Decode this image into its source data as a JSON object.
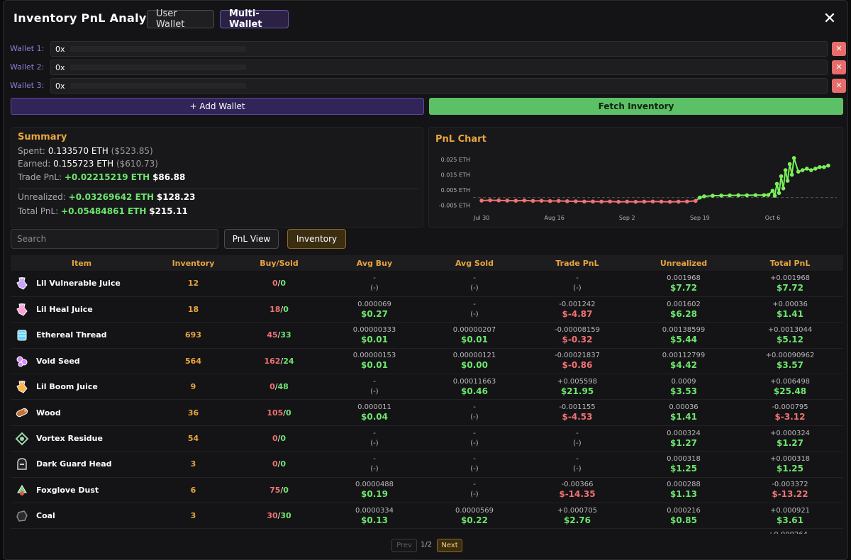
{
  "header": {
    "title": "Inventory PnL Analysis",
    "mode_user": "User Wallet",
    "mode_multi": "Multi-Wallet",
    "close": "✕"
  },
  "wallets": [
    {
      "label": "Wallet 1:",
      "value": "0x"
    },
    {
      "label": "Wallet 2:",
      "value": "0x"
    },
    {
      "label": "Wallet 3:",
      "value": "0x"
    }
  ],
  "remove_label": "✕",
  "add_wallet_label": "+ Add Wallet",
  "fetch_label": "Fetch Inventory",
  "summary": {
    "title": "Summary",
    "spent_label": "Spent:",
    "spent_eth": "0.133570 ETH",
    "spent_usd": "($523.85)",
    "earned_label": "Earned:",
    "earned_eth": "0.155723 ETH",
    "earned_usd": "($610.73)",
    "trade_label": "Trade PnL:",
    "trade_eth": "+0.02215219 ETH",
    "trade_usd": "$86.88",
    "unrealized_label": "Unrealized:",
    "unrealized_eth": "+0.03269642 ETH",
    "unrealized_usd": "$128.23",
    "total_label": "Total PnL:",
    "total_eth": "+0.05484861 ETH",
    "total_usd": "$215.11"
  },
  "chart_data": {
    "type": "line",
    "title": "PnL Chart",
    "y_ticks": [
      "0.025 ETH",
      "0.015 ETH",
      "0.005 ETH",
      "-0.005 ETH"
    ],
    "y_tick_values": [
      0.025,
      0.015,
      0.005,
      -0.005
    ],
    "ylim": [
      -0.009,
      0.032
    ],
    "x_ticks": [
      "Jul 30",
      "Aug 16",
      "Sep 2",
      "Sep 19",
      "Oct 6"
    ],
    "x_tick_values": [
      0,
      17,
      34,
      51,
      68
    ],
    "xlim": [
      -2,
      83
    ],
    "grid": false,
    "reference_line": 0,
    "negative_color": "#f07272",
    "positive_color": "#7cf05a",
    "series": [
      {
        "x": [
          0,
          2,
          4,
          6,
          8,
          10,
          12,
          14,
          16,
          18,
          20,
          22,
          24,
          26,
          28,
          30,
          32,
          34,
          36,
          38,
          40,
          42,
          44,
          46,
          48,
          50,
          51,
          52,
          54,
          56,
          58,
          60,
          62,
          64,
          66,
          67,
          68,
          68.5,
          69,
          69.5,
          70,
          70.5,
          71,
          71.5,
          72,
          72.5,
          73,
          74,
          75,
          76,
          77,
          78,
          79,
          80,
          81
        ],
        "y": [
          -0.002,
          -0.0018,
          -0.0019,
          -0.002,
          -0.0021,
          -0.0019,
          -0.0022,
          -0.0021,
          -0.0023,
          -0.0022,
          -0.0024,
          -0.0025,
          -0.0026,
          -0.0026,
          -0.0027,
          -0.0026,
          -0.0028,
          -0.0027,
          -0.0028,
          -0.0027,
          -0.0026,
          -0.0027,
          -0.0028,
          -0.0027,
          -0.0026,
          -0.0022,
          0.0,
          0.0008,
          0.0012,
          0.0013,
          0.0014,
          0.0015,
          0.0015,
          0.0016,
          0.0016,
          0.0017,
          0.0045,
          0.0012,
          0.009,
          0.003,
          0.014,
          0.006,
          0.018,
          0.011,
          0.022,
          0.015,
          0.026,
          0.017,
          0.018,
          0.019,
          0.018,
          0.019,
          0.02,
          0.02,
          0.021
        ]
      }
    ]
  },
  "search": {
    "placeholder": "Search"
  },
  "tabs": {
    "pnl": "PnL View",
    "inventory": "Inventory"
  },
  "table": {
    "headers": [
      "Item",
      "Inventory",
      "Buy/Sold",
      "Avg Buy",
      "Avg Sold",
      "Trade PnL",
      "Unrealized",
      "Total PnL"
    ],
    "rows": [
      {
        "name": "Lil Vulnerable Juice",
        "icon": "potion-icon",
        "icon_color": "#c9a4ff",
        "inventory": "12",
        "bought": "0",
        "sold": "0",
        "avg_buy": [
          "-",
          "(-)"
        ],
        "avg_sold": [
          "-",
          "(-)"
        ],
        "trade": [
          "-",
          "(-)"
        ],
        "unreal": [
          "0.001968",
          "$7.72"
        ],
        "total": [
          "+0.001968",
          "$7.72"
        ]
      },
      {
        "name": "Lil Heal Juice",
        "icon": "potion-icon",
        "icon_color": "#ff9ed8",
        "inventory": "18",
        "bought": "18",
        "sold": "0",
        "avg_buy": [
          "0.000069",
          "$0.27"
        ],
        "avg_sold": [
          "-",
          "(-)"
        ],
        "trade": [
          "-0.001242",
          "$-4.87"
        ],
        "unreal": [
          "0.001602",
          "$6.28"
        ],
        "total": [
          "+0.00036",
          "$1.41"
        ]
      },
      {
        "name": "Ethereal Thread",
        "icon": "thread-icon",
        "icon_color": "#5fd2ff",
        "inventory": "693",
        "bought": "45",
        "sold": "33",
        "avg_buy": [
          "0.00000333",
          "$0.01"
        ],
        "avg_sold": [
          "0.00000207",
          "$0.01"
        ],
        "trade": [
          "-0.00008159",
          "$-0.32"
        ],
        "unreal": [
          "0.00138599",
          "$5.44"
        ],
        "total": [
          "+0.0013044",
          "$5.12"
        ]
      },
      {
        "name": "Void Seed",
        "icon": "seed-icon",
        "icon_color": "#d68cff",
        "inventory": "564",
        "bought": "162",
        "sold": "24",
        "avg_buy": [
          "0.00000153",
          "$0.01"
        ],
        "avg_sold": [
          "0.00000121",
          "$0.00"
        ],
        "trade": [
          "-0.00021837",
          "$-0.86"
        ],
        "unreal": [
          "0.00112799",
          "$4.42"
        ],
        "total": [
          "+0.00090962",
          "$3.57"
        ]
      },
      {
        "name": "Lil Boom Juice",
        "icon": "potion-icon",
        "icon_color": "#ffb347",
        "inventory": "9",
        "bought": "0",
        "sold": "48",
        "avg_buy": [
          "-",
          "(-)"
        ],
        "avg_sold": [
          "0.00011663",
          "$0.46"
        ],
        "trade": [
          "+0.005598",
          "$21.95"
        ],
        "unreal": [
          "0.0009",
          "$3.53"
        ],
        "total": [
          "+0.006498",
          "$25.48"
        ]
      },
      {
        "name": "Wood",
        "icon": "wood-icon",
        "icon_color": "#c2703a",
        "inventory": "36",
        "bought": "105",
        "sold": "0",
        "avg_buy": [
          "0.000011",
          "$0.04"
        ],
        "avg_sold": [
          "-",
          "(-)"
        ],
        "trade": [
          "-0.001155",
          "$-4.53"
        ],
        "unreal": [
          "0.00036",
          "$1.41"
        ],
        "total": [
          "-0.000795",
          "$-3.12"
        ]
      },
      {
        "name": "Vortex Residue",
        "icon": "vortex-icon",
        "icon_color": "#9fd6a8",
        "inventory": "54",
        "bought": "0",
        "sold": "0",
        "avg_buy": [
          "-",
          "(-)"
        ],
        "avg_sold": [
          "-",
          "(-)"
        ],
        "trade": [
          "-",
          "(-)"
        ],
        "unreal": [
          "0.000324",
          "$1.27"
        ],
        "total": [
          "+0.000324",
          "$1.27"
        ]
      },
      {
        "name": "Dark Guard Head",
        "icon": "helmet-icon",
        "icon_color": "#cfcfd4",
        "inventory": "3",
        "bought": "0",
        "sold": "0",
        "avg_buy": [
          "-",
          "(-)"
        ],
        "avg_sold": [
          "-",
          "(-)"
        ],
        "trade": [
          "-",
          "(-)"
        ],
        "unreal": [
          "0.000318",
          "$1.25"
        ],
        "total": [
          "+0.000318",
          "$1.25"
        ]
      },
      {
        "name": "Foxglove Dust",
        "icon": "dust-icon",
        "icon_color": "#6fd37a",
        "inventory": "6",
        "bought": "75",
        "sold": "0",
        "avg_buy": [
          "0.0000488",
          "$0.19"
        ],
        "avg_sold": [
          "-",
          "(-)"
        ],
        "trade": [
          "-0.00366",
          "$-14.35"
        ],
        "unreal": [
          "0.000288",
          "$1.13"
        ],
        "total": [
          "-0.003372",
          "$-13.22"
        ]
      },
      {
        "name": "Coal",
        "icon": "coal-icon",
        "icon_color": "#8a8a90",
        "inventory": "3",
        "bought": "30",
        "sold": "30",
        "avg_buy": [
          "0.0000334",
          "$0.13"
        ],
        "avg_sold": [
          "0.0000569",
          "$0.22"
        ],
        "trade": [
          "+0.000705",
          "$2.76"
        ],
        "unreal": [
          "0.000216",
          "$0.85"
        ],
        "total": [
          "+0.000921",
          "$3.61"
        ]
      }
    ]
  },
  "pager": {
    "prev": "Prev",
    "info": "1/2",
    "next": "Next"
  }
}
